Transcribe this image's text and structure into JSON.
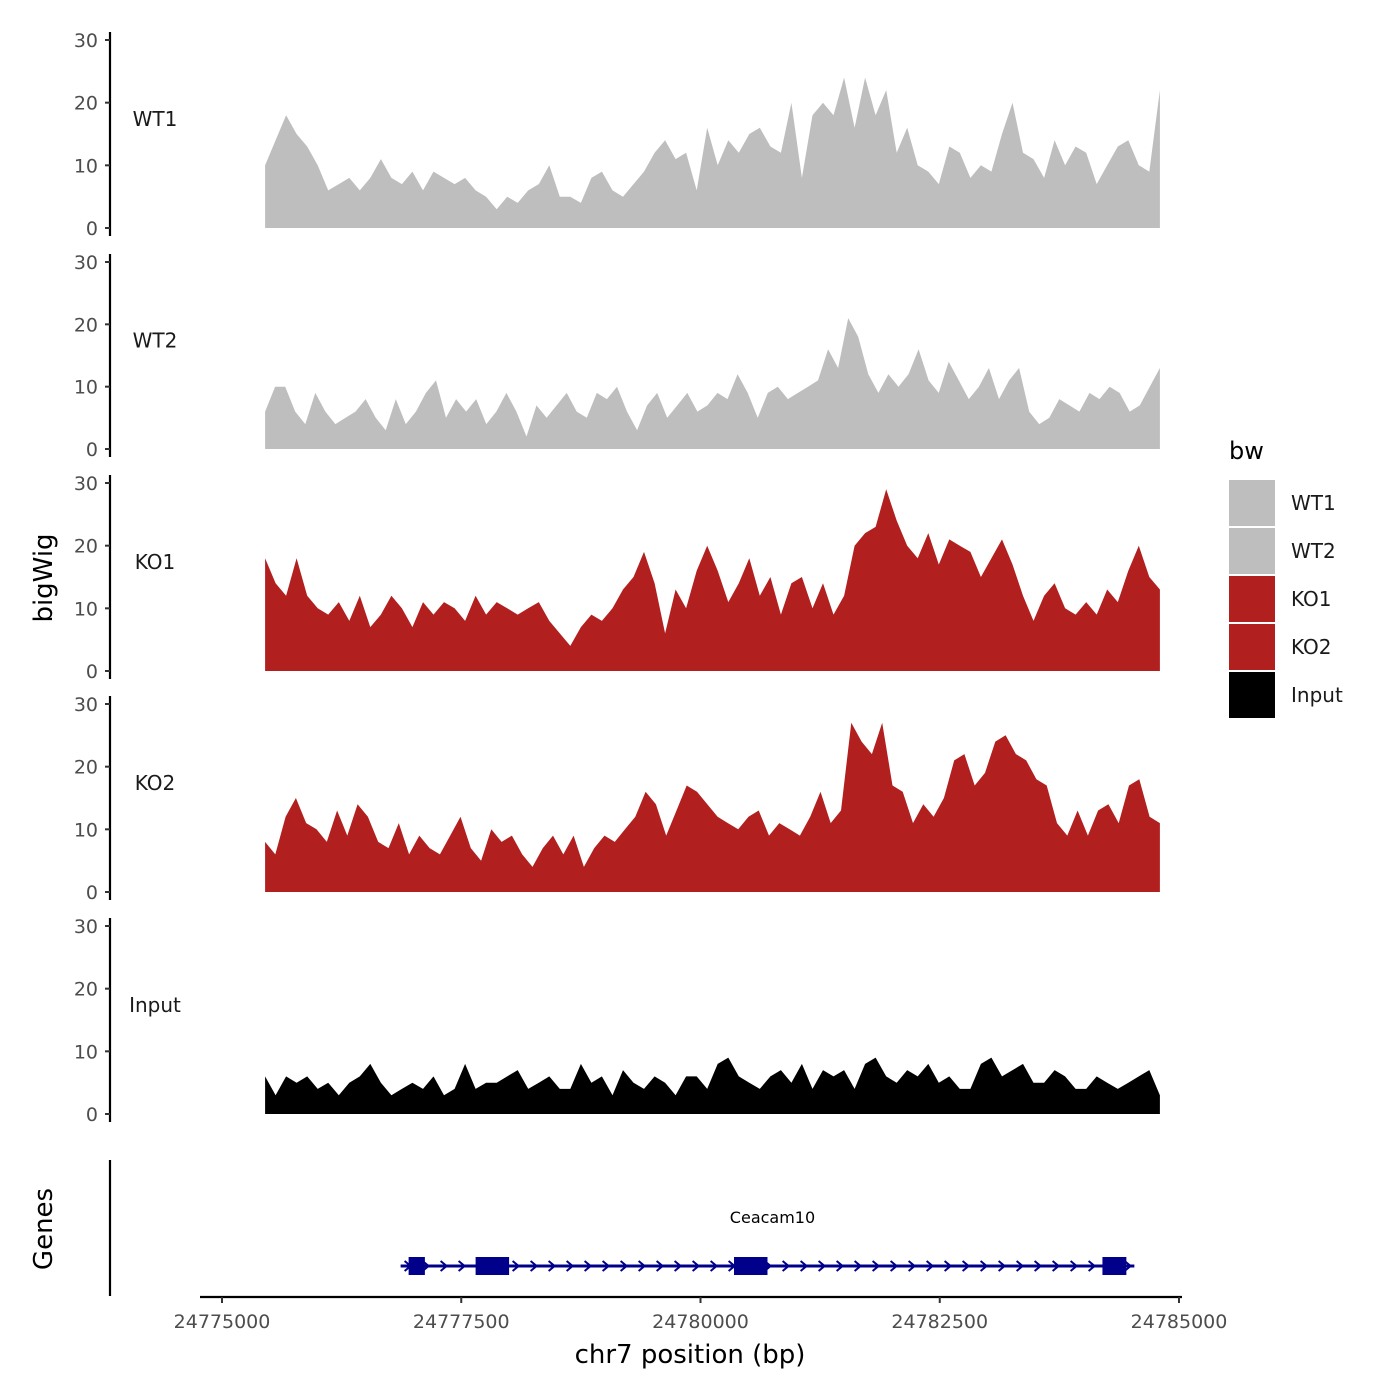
{
  "chart_data": {
    "type": "area",
    "x_label": "chr7 position (bp)",
    "y_label": "bigWig",
    "genes_label": "Genes",
    "x_range": [
      24775000,
      24785000
    ],
    "x_ticks": [
      24775000,
      24777500,
      24780000,
      24782500,
      24785000
    ],
    "x_tick_labels": [
      "24775000",
      "24777500",
      "24780000",
      "24782500",
      "24785000"
    ],
    "y_range": [
      0,
      30
    ],
    "y_ticks": [
      0,
      10,
      20,
      30
    ],
    "y_tick_labels": [
      "0",
      "10",
      "20",
      "30"
    ],
    "region": [
      24775450,
      24784800
    ],
    "legend": {
      "title": "bw",
      "position": "right",
      "entries": [
        {
          "label": "WT1",
          "color": "#bebebe"
        },
        {
          "label": "WT2",
          "color": "#bebebe"
        },
        {
          "label": "KO1",
          "color": "#b21f1f"
        },
        {
          "label": "KO2",
          "color": "#b21f1f"
        },
        {
          "label": "Input",
          "color": "#000000"
        }
      ]
    },
    "series": [
      {
        "name": "WT1",
        "color": "#bebebe",
        "x_step_bp": 200,
        "values": [
          10,
          14,
          18,
          15,
          13,
          10,
          6,
          7,
          8,
          6,
          8,
          11,
          8,
          7,
          9,
          6,
          9,
          8,
          7,
          8,
          6,
          5,
          3,
          5,
          4,
          6,
          7,
          10,
          5,
          5,
          4,
          8,
          9,
          6,
          5,
          7,
          9,
          12,
          14,
          11,
          12,
          6,
          16,
          10,
          14,
          12,
          15,
          16,
          13,
          12,
          20,
          8,
          18,
          20,
          18,
          24,
          16,
          24,
          18,
          22,
          12,
          16,
          10,
          9,
          7,
          13,
          12,
          8,
          10,
          9,
          15,
          20,
          12,
          11,
          8,
          14,
          10,
          13,
          12,
          7,
          10,
          13,
          14,
          10,
          9,
          22
        ]
      },
      {
        "name": "WT2",
        "color": "#bebebe",
        "x_step_bp": 200,
        "values": [
          6,
          10,
          10,
          6,
          4,
          9,
          6,
          4,
          5,
          6,
          8,
          5,
          3,
          8,
          4,
          6,
          9,
          11,
          5,
          8,
          6,
          8,
          4,
          6,
          9,
          6,
          2,
          7,
          5,
          7,
          9,
          6,
          5,
          9,
          8,
          10,
          6,
          3,
          7,
          9,
          5,
          7,
          9,
          6,
          7,
          9,
          8,
          12,
          9,
          5,
          9,
          10,
          8,
          9,
          10,
          11,
          16,
          13,
          21,
          18,
          12,
          9,
          12,
          10,
          12,
          16,
          11,
          9,
          14,
          11,
          8,
          10,
          13,
          8,
          11,
          13,
          6,
          4,
          5,
          8,
          7,
          6,
          9,
          8,
          10,
          9,
          6,
          7,
          10,
          13
        ]
      },
      {
        "name": "KO1",
        "color": "#b21f1f",
        "x_step_bp": 200,
        "values": [
          18,
          14,
          12,
          18,
          12,
          10,
          9,
          11,
          8,
          12,
          7,
          9,
          12,
          10,
          7,
          11,
          9,
          11,
          10,
          8,
          12,
          9,
          11,
          10,
          9,
          10,
          11,
          8,
          6,
          4,
          7,
          9,
          8,
          10,
          13,
          15,
          19,
          14,
          6,
          13,
          10,
          16,
          20,
          16,
          11,
          14,
          18,
          12,
          15,
          9,
          14,
          15,
          10,
          14,
          9,
          12,
          20,
          22,
          23,
          29,
          24,
          20,
          18,
          22,
          17,
          21,
          20,
          19,
          15,
          18,
          21,
          17,
          12,
          8,
          12,
          14,
          10,
          9,
          11,
          9,
          13,
          11,
          16,
          20,
          15,
          13
        ]
      },
      {
        "name": "KO2",
        "color": "#b21f1f",
        "x_step_bp": 200,
        "values": [
          8,
          6,
          12,
          15,
          11,
          10,
          8,
          13,
          9,
          14,
          12,
          8,
          7,
          11,
          6,
          9,
          7,
          6,
          9,
          12,
          7,
          5,
          10,
          8,
          9,
          6,
          4,
          7,
          9,
          6,
          9,
          4,
          7,
          9,
          8,
          10,
          12,
          16,
          14,
          9,
          13,
          17,
          16,
          14,
          12,
          11,
          10,
          12,
          13,
          9,
          11,
          10,
          9,
          12,
          16,
          11,
          13,
          27,
          24,
          22,
          27,
          17,
          16,
          11,
          14,
          12,
          15,
          21,
          22,
          17,
          19,
          24,
          25,
          22,
          21,
          18,
          17,
          11,
          9,
          13,
          9,
          13,
          14,
          11,
          17,
          18,
          12,
          11
        ]
      },
      {
        "name": "Input",
        "color": "#000000",
        "x_step_bp": 200,
        "values": [
          6,
          3,
          6,
          5,
          6,
          4,
          5,
          3,
          5,
          6,
          8,
          5,
          3,
          4,
          5,
          4,
          6,
          3,
          4,
          8,
          4,
          5,
          5,
          6,
          7,
          4,
          5,
          6,
          4,
          4,
          8,
          5,
          6,
          3,
          7,
          5,
          4,
          6,
          5,
          3,
          6,
          6,
          4,
          8,
          9,
          6,
          5,
          4,
          6,
          7,
          5,
          8,
          4,
          7,
          6,
          7,
          4,
          8,
          9,
          6,
          5,
          7,
          6,
          8,
          5,
          6,
          4,
          4,
          8,
          9,
          6,
          7,
          8,
          5,
          5,
          7,
          6,
          4,
          4,
          6,
          5,
          4,
          5,
          6,
          7,
          3
        ]
      }
    ],
    "gene": {
      "name": "Ceacam10",
      "color": "#00008b",
      "strand": "+",
      "start": 24776950,
      "end": 24784450,
      "exons": [
        [
          24776950,
          24777120
        ],
        [
          24777650,
          24778000
        ],
        [
          24780350,
          24780700
        ],
        [
          24784200,
          24784450
        ]
      ]
    }
  }
}
